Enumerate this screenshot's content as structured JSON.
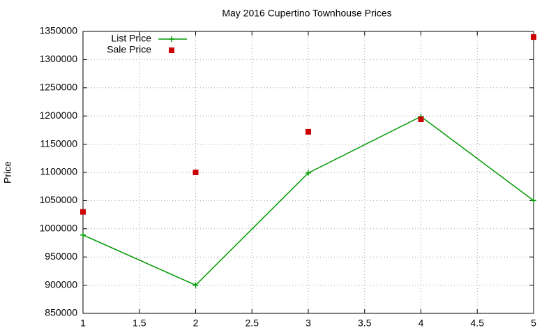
{
  "chart_data": {
    "type": "line",
    "title": "May 2016 Cupertino Townhouse Prices",
    "y_label": "Price",
    "x": [
      1,
      2,
      3,
      4,
      5
    ],
    "series": [
      {
        "name": "List Price",
        "color": "#009900",
        "mode": "lines+markers",
        "marker": "plus",
        "values": [
          989000,
          900000,
          1099000,
          1199000,
          1050000
        ]
      },
      {
        "name": "Sale Price",
        "color": "#cc0000",
        "mode": "markers",
        "marker": "square",
        "values": [
          1030000,
          1100000,
          1172000,
          1194000,
          1340000
        ]
      }
    ],
    "xlim": [
      1,
      5
    ],
    "xticks": [
      1,
      1.5,
      2,
      2.5,
      3,
      3.5,
      4,
      4.5,
      5
    ],
    "ylim": [
      850000,
      1350000
    ],
    "yticks": [
      850000,
      900000,
      950000,
      1000000,
      1050000,
      1100000,
      1150000,
      1200000,
      1250000,
      1300000,
      1350000
    ],
    "grid": true,
    "legend": "top-left"
  }
}
